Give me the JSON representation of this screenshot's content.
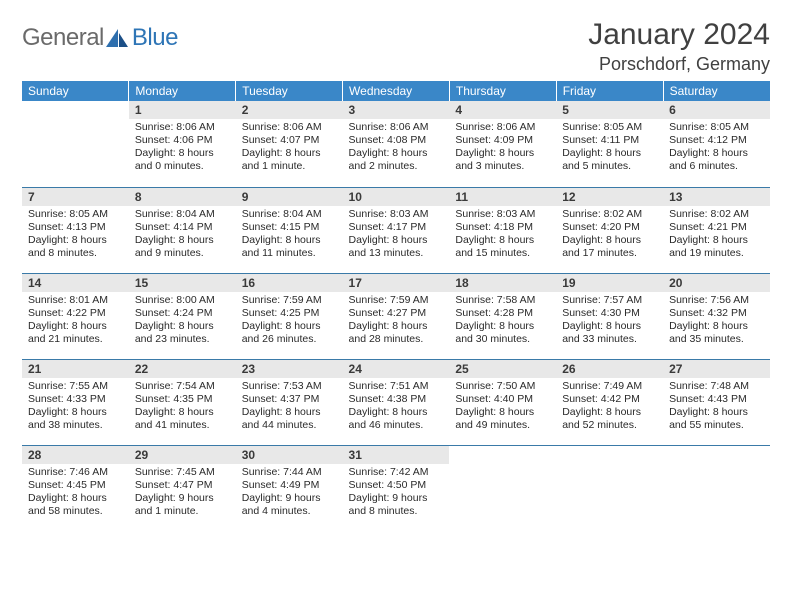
{
  "logo": {
    "word1": "General",
    "word2": "Blue"
  },
  "header": {
    "title": "January 2024",
    "location": "Porschdorf, Germany"
  },
  "theme": {
    "header_bg": "#3a87c8",
    "header_text": "#ffffff",
    "daynum_bg": "#e8e8e8",
    "rule_color": "#3a7aa8",
    "title_color": "#404040",
    "logo_gray": "#6a6a6a",
    "logo_blue": "#2e75b6",
    "body_text": "#2a2a2a"
  },
  "weekdays": [
    "Sunday",
    "Monday",
    "Tuesday",
    "Wednesday",
    "Thursday",
    "Friday",
    "Saturday"
  ],
  "weeks": [
    [
      null,
      {
        "n": "1",
        "sr": "8:06 AM",
        "ss": "4:06 PM",
        "dl": "8 hours and 0 minutes."
      },
      {
        "n": "2",
        "sr": "8:06 AM",
        "ss": "4:07 PM",
        "dl": "8 hours and 1 minute."
      },
      {
        "n": "3",
        "sr": "8:06 AM",
        "ss": "4:08 PM",
        "dl": "8 hours and 2 minutes."
      },
      {
        "n": "4",
        "sr": "8:06 AM",
        "ss": "4:09 PM",
        "dl": "8 hours and 3 minutes."
      },
      {
        "n": "5",
        "sr": "8:05 AM",
        "ss": "4:11 PM",
        "dl": "8 hours and 5 minutes."
      },
      {
        "n": "6",
        "sr": "8:05 AM",
        "ss": "4:12 PM",
        "dl": "8 hours and 6 minutes."
      }
    ],
    [
      {
        "n": "7",
        "sr": "8:05 AM",
        "ss": "4:13 PM",
        "dl": "8 hours and 8 minutes."
      },
      {
        "n": "8",
        "sr": "8:04 AM",
        "ss": "4:14 PM",
        "dl": "8 hours and 9 minutes."
      },
      {
        "n": "9",
        "sr": "8:04 AM",
        "ss": "4:15 PM",
        "dl": "8 hours and 11 minutes."
      },
      {
        "n": "10",
        "sr": "8:03 AM",
        "ss": "4:17 PM",
        "dl": "8 hours and 13 minutes."
      },
      {
        "n": "11",
        "sr": "8:03 AM",
        "ss": "4:18 PM",
        "dl": "8 hours and 15 minutes."
      },
      {
        "n": "12",
        "sr": "8:02 AM",
        "ss": "4:20 PM",
        "dl": "8 hours and 17 minutes."
      },
      {
        "n": "13",
        "sr": "8:02 AM",
        "ss": "4:21 PM",
        "dl": "8 hours and 19 minutes."
      }
    ],
    [
      {
        "n": "14",
        "sr": "8:01 AM",
        "ss": "4:22 PM",
        "dl": "8 hours and 21 minutes."
      },
      {
        "n": "15",
        "sr": "8:00 AM",
        "ss": "4:24 PM",
        "dl": "8 hours and 23 minutes."
      },
      {
        "n": "16",
        "sr": "7:59 AM",
        "ss": "4:25 PM",
        "dl": "8 hours and 26 minutes."
      },
      {
        "n": "17",
        "sr": "7:59 AM",
        "ss": "4:27 PM",
        "dl": "8 hours and 28 minutes."
      },
      {
        "n": "18",
        "sr": "7:58 AM",
        "ss": "4:28 PM",
        "dl": "8 hours and 30 minutes."
      },
      {
        "n": "19",
        "sr": "7:57 AM",
        "ss": "4:30 PM",
        "dl": "8 hours and 33 minutes."
      },
      {
        "n": "20",
        "sr": "7:56 AM",
        "ss": "4:32 PM",
        "dl": "8 hours and 35 minutes."
      }
    ],
    [
      {
        "n": "21",
        "sr": "7:55 AM",
        "ss": "4:33 PM",
        "dl": "8 hours and 38 minutes."
      },
      {
        "n": "22",
        "sr": "7:54 AM",
        "ss": "4:35 PM",
        "dl": "8 hours and 41 minutes."
      },
      {
        "n": "23",
        "sr": "7:53 AM",
        "ss": "4:37 PM",
        "dl": "8 hours and 44 minutes."
      },
      {
        "n": "24",
        "sr": "7:51 AM",
        "ss": "4:38 PM",
        "dl": "8 hours and 46 minutes."
      },
      {
        "n": "25",
        "sr": "7:50 AM",
        "ss": "4:40 PM",
        "dl": "8 hours and 49 minutes."
      },
      {
        "n": "26",
        "sr": "7:49 AM",
        "ss": "4:42 PM",
        "dl": "8 hours and 52 minutes."
      },
      {
        "n": "27",
        "sr": "7:48 AM",
        "ss": "4:43 PM",
        "dl": "8 hours and 55 minutes."
      }
    ],
    [
      {
        "n": "28",
        "sr": "7:46 AM",
        "ss": "4:45 PM",
        "dl": "8 hours and 58 minutes."
      },
      {
        "n": "29",
        "sr": "7:45 AM",
        "ss": "4:47 PM",
        "dl": "9 hours and 1 minute."
      },
      {
        "n": "30",
        "sr": "7:44 AM",
        "ss": "4:49 PM",
        "dl": "9 hours and 4 minutes."
      },
      {
        "n": "31",
        "sr": "7:42 AM",
        "ss": "4:50 PM",
        "dl": "9 hours and 8 minutes."
      },
      null,
      null,
      null
    ]
  ],
  "labels": {
    "sunrise": "Sunrise:",
    "sunset": "Sunset:",
    "daylight": "Daylight:"
  }
}
